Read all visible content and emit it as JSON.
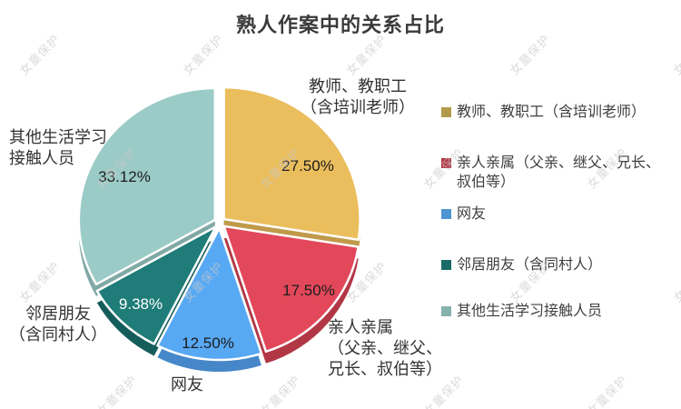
{
  "title": "熟人作案中的关系占比",
  "watermark": {
    "text": "女童保护"
  },
  "chart_data": {
    "type": "pie",
    "title": "熟人作案中的关系占比",
    "unit": "%",
    "start_angle_deg": 0,
    "direction": "clockwise",
    "legend_position": "right",
    "labels_inside": "percent",
    "labels_outside": "category",
    "style": "exploded pie with 3d depth sides and white gaps",
    "slices": [
      {
        "label": "教师、教职工（含培训老师）",
        "value": 27.5,
        "pct_label": "27.50%",
        "color": "#EBBE5D",
        "side_color": "#C09A4A"
      },
      {
        "label": "亲人亲属（父亲、继父、兄长、叔伯等）",
        "value": 17.5,
        "pct_label": "17.50%",
        "color": "#E2485A",
        "side_color": "#B23745"
      },
      {
        "label": "网友",
        "value": 12.5,
        "pct_label": "12.50%",
        "color": "#58A9F4",
        "side_color": "#4587C9"
      },
      {
        "label": "邻居朋友（含同村人）",
        "value": 9.38,
        "pct_label": "9.38%",
        "color": "#1F7C78",
        "side_color": "#155D5B"
      },
      {
        "label": "其他生活学习接触人员",
        "value": 33.12,
        "pct_label": "33.12%",
        "color": "#9BCBC7",
        "side_color": "#80A9A6"
      }
    ]
  },
  "callouts": {
    "teacher": {
      "lines": [
        "教师、教职工",
        "（含培训老师）"
      ]
    },
    "relative": {
      "lines": [
        "亲人亲属",
        "（父亲、继父、",
        "兄长、叔伯等）"
      ]
    },
    "netfriend": {
      "lines": [
        "网友"
      ]
    },
    "neighbor": {
      "lines": [
        "邻居朋友",
        "（含同村人）"
      ]
    },
    "other": {
      "lines": [
        "其他生活学习",
        "接触人员"
      ]
    }
  },
  "legend": {
    "items": [
      {
        "label": "教师、教职工（含培训老师）",
        "color": "#B29A4B"
      },
      {
        "label": "亲人亲属（父亲、继父、兄长、叔伯等）",
        "color": "#B23945"
      },
      {
        "label": "网友",
        "color": "#4E94D2"
      },
      {
        "label": "邻居朋友（含同村人）",
        "color": "#1A6B67"
      },
      {
        "label": "其他生活学习接触人员",
        "color": "#85B2AD"
      }
    ]
  }
}
